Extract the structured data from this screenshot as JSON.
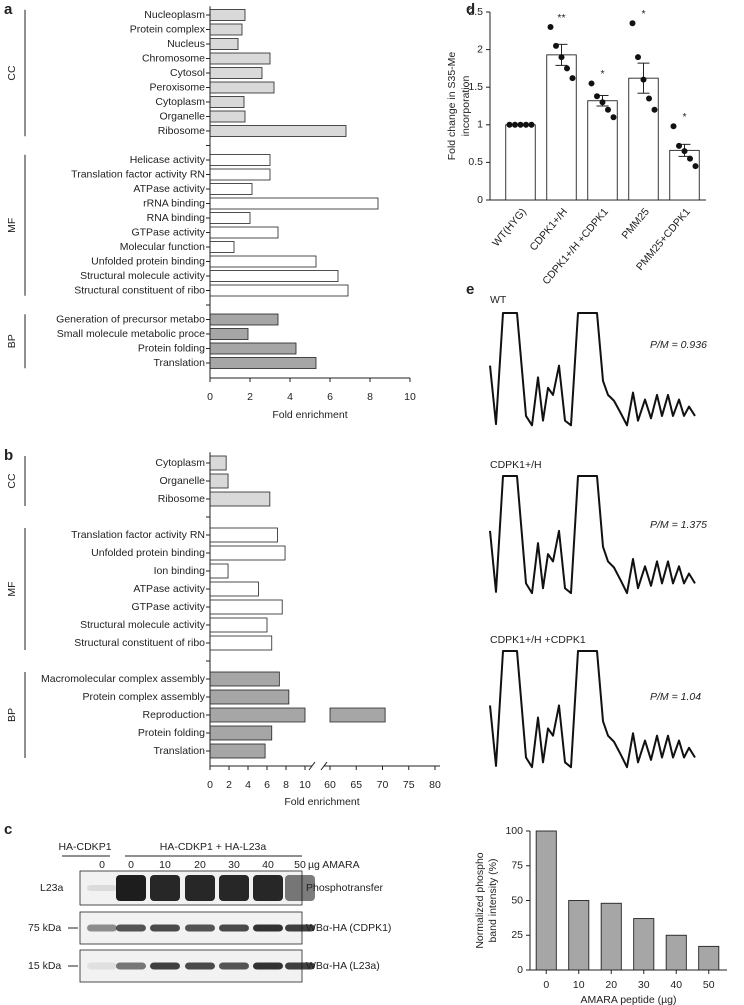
{
  "panel_labels": [
    "a",
    "b",
    "c",
    "d",
    "e"
  ],
  "chart_data": [
    {
      "type": "hbar",
      "xlabel": "Fold enrichment",
      "xlim": [
        0,
        10
      ],
      "xticks": [
        0,
        2,
        4,
        6,
        8,
        10
      ],
      "groups": [
        {
          "name": "CC",
          "color": "#d9d9d9",
          "categories": [
            "Nucleoplasm",
            "Protein complex",
            "Nucleus",
            "Chromosome",
            "Cytosol",
            "Peroxisome",
            "Cytoplasm",
            "Organelle",
            "Ribosome"
          ],
          "values": [
            1.75,
            1.6,
            1.4,
            3.0,
            2.6,
            3.2,
            1.7,
            1.75,
            6.8
          ]
        },
        {
          "name": "MF",
          "color": "#ffffff",
          "categories": [
            "Helicase activity",
            "Translation factor activity RN",
            "ATPase activity",
            "rRNA binding",
            "RNA binding",
            "GTPase activity",
            "Molecular function",
            "Unfolded protein binding",
            "Structural molecule activity",
            "Structural constituent of ribo"
          ],
          "values": [
            3.0,
            3.0,
            2.1,
            8.4,
            2.0,
            3.4,
            1.2,
            5.3,
            6.4,
            6.9
          ]
        },
        {
          "name": "BP",
          "color": "#a6a6a6",
          "categories": [
            "Generation of precursor metabo",
            "Small molecule metabolic proce",
            "Protein folding",
            "Translation"
          ],
          "values": [
            3.4,
            1.9,
            4.3,
            5.3
          ]
        }
      ]
    },
    {
      "type": "hbar",
      "xlabel": "Fold enrichment",
      "xlim": [
        0,
        80
      ],
      "axis_break": [
        10,
        60
      ],
      "xticks": [
        0,
        2,
        4,
        6,
        8,
        10,
        60,
        65,
        70,
        75,
        80
      ],
      "groups": [
        {
          "name": "CC",
          "color": "#d9d9d9",
          "categories": [
            "Cytoplasm",
            "Organelle",
            "Ribosome"
          ],
          "values": [
            1.7,
            1.9,
            6.3
          ]
        },
        {
          "name": "MF",
          "color": "#ffffff",
          "categories": [
            "Translation factor activity RN",
            "Unfolded protein binding",
            "Ion binding",
            "ATPase activity",
            "GTPase activity",
            "Structural molecule activity",
            "Structural constituent of ribo"
          ],
          "values": [
            7.1,
            7.9,
            1.9,
            5.1,
            7.6,
            6.0,
            6.5
          ]
        },
        {
          "name": "BP",
          "color": "#a6a6a6",
          "categories": [
            "Macromolecular complex assembly",
            "Protein complex assembly",
            "Reproduction",
            "Protein folding",
            "Translation"
          ],
          "values": [
            7.3,
            8.3,
            70.5,
            6.5,
            5.8
          ]
        }
      ]
    },
    {
      "type": "bar",
      "ylabel": [
        "Fold change in S35-Me",
        "incorporation"
      ],
      "color": "#ffffff",
      "ylim": [
        0,
        2.5
      ],
      "yticks": [
        0,
        0.5,
        1,
        1.5,
        2,
        2.5
      ],
      "categories": [
        "WT(HYG)",
        "CDPK1+/H",
        "CDPK1+/H +CDPK1",
        "PMM25",
        "PMM25+CDPK1"
      ],
      "values": [
        1.0,
        1.93,
        1.32,
        1.62,
        0.66
      ],
      "errors": [
        0,
        0.14,
        0.07,
        0.2,
        0.08
      ],
      "points": [
        [
          1,
          1,
          1,
          1,
          1
        ],
        [
          2.3,
          2.05,
          1.9,
          1.75,
          1.62
        ],
        [
          1.55,
          1.38,
          1.3,
          1.2,
          1.1
        ],
        [
          2.35,
          1.9,
          1.6,
          1.35,
          1.2
        ],
        [
          0.98,
          0.72,
          0.65,
          0.55,
          0.45
        ]
      ],
      "annotations": [
        null,
        "**",
        "*",
        "*",
        "*"
      ]
    },
    {
      "type": "bar",
      "xlabel": "AMARA peptide (µg)",
      "ylabel": [
        "Normalized phospho",
        "band intensity (%)"
      ],
      "color": "#a6a6a6",
      "ylim": [
        0,
        100
      ],
      "yticks": [
        0,
        25,
        50,
        75,
        100
      ],
      "categories": [
        "0",
        "10",
        "20",
        "30",
        "40",
        "50"
      ],
      "values": [
        100,
        50,
        48,
        37,
        25,
        17
      ]
    }
  ],
  "blot": {
    "group1": "HA-CDKP1",
    "group2": "HA-CDKP1 + HA-L23a",
    "lanes": [
      "0",
      "0",
      "10",
      "20",
      "30",
      "40",
      "50"
    ],
    "unit": "µg AMARA",
    "rows": [
      {
        "left": "L23a",
        "right": "Phosphotransfer"
      },
      {
        "left": "75 kDa",
        "right": "WBα-HA (CDPK1)"
      },
      {
        "left": "15 kDa",
        "right": "WBα-HA (L23a)"
      }
    ]
  },
  "traces": [
    {
      "label": "WT",
      "ratio": "P/M = 0.936"
    },
    {
      "label": "CDPK1+/H",
      "ratio": "P/M = 1.375"
    },
    {
      "label": "CDPK1+/H +CDPK1",
      "ratio": "P/M = 1.04"
    }
  ]
}
